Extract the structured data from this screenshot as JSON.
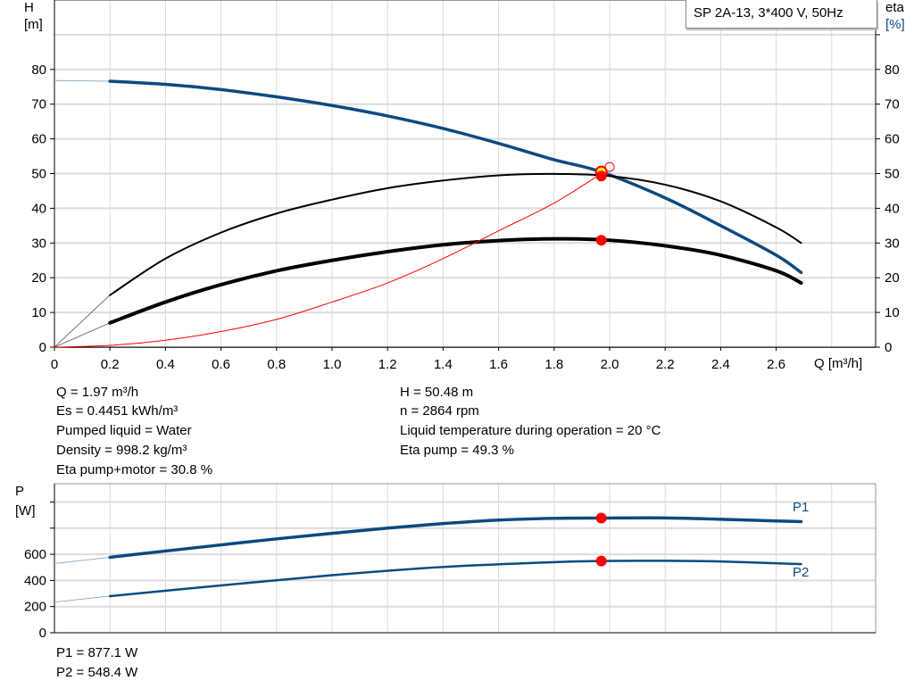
{
  "chart_data": [
    {
      "type": "line",
      "title": "SP 2A-13, 3*400 V, 50Hz",
      "xlabel": "Q [m³/h]",
      "ylabel_left": [
        "H",
        "[m]"
      ],
      "ylabel_right": [
        "eta",
        "[%]"
      ],
      "xlim": [
        0,
        2.96
      ],
      "ylim": [
        0,
        100
      ],
      "xticks": [
        "0",
        "0.2",
        "0.4",
        "0.6",
        "0.8",
        "1.0",
        "1.2",
        "1.4",
        "1.6",
        "1.8",
        "2.0",
        "2.2",
        "2.4",
        "2.6"
      ],
      "yticks": [
        0,
        10,
        20,
        30,
        40,
        50,
        60,
        70,
        80
      ],
      "grid": true,
      "series": [
        {
          "key": "H",
          "color": "#0b4a80",
          "x": [
            0.2,
            0.4,
            0.6,
            0.8,
            1.0,
            1.2,
            1.4,
            1.6,
            1.8,
            1.97,
            2.2,
            2.4,
            2.6,
            2.69
          ],
          "y": [
            76.6,
            75.7,
            74.2,
            72.1,
            69.6,
            66.6,
            63.0,
            58.7,
            54.0,
            50.48,
            43.0,
            35.0,
            26.5,
            21.5
          ],
          "extension": {
            "x": [
              0,
              0.2
            ],
            "y": [
              76.8,
              76.6
            ]
          }
        },
        {
          "key": "eta_pump",
          "color": "#000000",
          "x": [
            0.2,
            0.4,
            0.6,
            0.8,
            1.0,
            1.2,
            1.4,
            1.6,
            1.8,
            2.0,
            2.2,
            2.4,
            2.6,
            2.69
          ],
          "y": [
            15,
            25.5,
            33,
            38.5,
            42.5,
            45.8,
            48,
            49.5,
            49.9,
            49.3,
            46.8,
            42,
            34.5,
            30
          ],
          "extension": {
            "x": [
              0,
              0.2
            ],
            "y": [
              0,
              15
            ]
          }
        },
        {
          "key": "eta_total",
          "color": "#000000",
          "x": [
            0.2,
            0.4,
            0.6,
            0.8,
            1.0,
            1.2,
            1.4,
            1.6,
            1.8,
            2.0,
            2.2,
            2.4,
            2.6,
            2.69
          ],
          "y": [
            7,
            13,
            18,
            22,
            25,
            27.5,
            29.5,
            30.7,
            31.2,
            30.8,
            29.2,
            26.5,
            22,
            18.5
          ],
          "extension": {
            "x": [
              0,
              0.2
            ],
            "y": [
              0,
              7
            ]
          }
        },
        {
          "key": "system",
          "color": "#ff0000",
          "x": [
            0,
            0.2,
            0.4,
            0.6,
            0.8,
            1.0,
            1.2,
            1.4,
            1.6,
            1.8,
            1.97
          ],
          "y": [
            0,
            0.5,
            2,
            4.5,
            8,
            13,
            18.5,
            25.5,
            33.5,
            41.5,
            50.0
          ]
        }
      ],
      "markers": [
        {
          "key": "duty_H",
          "x": 1.97,
          "y": 50.48,
          "fill": "#ffff00",
          "stroke": "#ff0000"
        },
        {
          "key": "duty_eta_pump",
          "x": 1.97,
          "y": 49.3,
          "fill": "#ff0000"
        },
        {
          "key": "duty_eta_total",
          "x": 1.97,
          "y": 30.8,
          "fill": "#ff0000"
        },
        {
          "key": "requested",
          "x": 2.0,
          "y": 51.9,
          "fill": "none",
          "stroke": "#ff0000"
        }
      ]
    },
    {
      "type": "line",
      "ylabel": [
        "P",
        "[W]"
      ],
      "xlim": [
        0,
        2.96
      ],
      "ylim": [
        0,
        1135
      ],
      "yticks": [
        0,
        200,
        400,
        600
      ],
      "unlabeled_yticks": [
        800,
        1000
      ],
      "grid": true,
      "series": [
        {
          "name": "P1",
          "color": "#0b4a80",
          "x": [
            0.2,
            0.4,
            0.6,
            0.8,
            1.0,
            1.2,
            1.4,
            1.6,
            1.8,
            1.97,
            2.2,
            2.4,
            2.6,
            2.69
          ],
          "y": [
            577,
            625,
            672,
            718,
            760,
            800,
            835,
            862,
            875,
            877.1,
            878,
            868,
            855,
            850
          ],
          "extension": {
            "x": [
              0,
              0.2
            ],
            "y": [
              530,
              577
            ]
          }
        },
        {
          "name": "P2",
          "color": "#0b4a80",
          "x": [
            0.2,
            0.6,
            1.0,
            1.4,
            1.8,
            1.97,
            2.2,
            2.4,
            2.69
          ],
          "y": [
            280,
            362,
            440,
            503,
            540,
            548.4,
            550,
            545,
            525
          ],
          "extension": {
            "x": [
              0,
              0.2
            ],
            "y": [
              235,
              280
            ]
          }
        }
      ],
      "markers": [
        {
          "key": "duty_P1",
          "x": 1.97,
          "y": 877.1,
          "fill": "#ff0000"
        },
        {
          "key": "duty_P2",
          "x": 1.97,
          "y": 548.4,
          "fill": "#ff0000"
        }
      ]
    }
  ],
  "results": {
    "left": [
      "Q = 1.97 m³/h",
      "Es = 0.4451 kWh/m³",
      "Pumped liquid = Water",
      "Density = 998.2 kg/m³",
      "Eta pump+motor = 30.8 %"
    ],
    "right": [
      "H = 50.48 m",
      "n = 2864 rpm",
      "Liquid temperature during operation = 20 °C",
      "Eta pump = 49.3 %"
    ],
    "power": [
      "P1 = 877.1 W",
      "P2 = 548.4 W"
    ]
  }
}
